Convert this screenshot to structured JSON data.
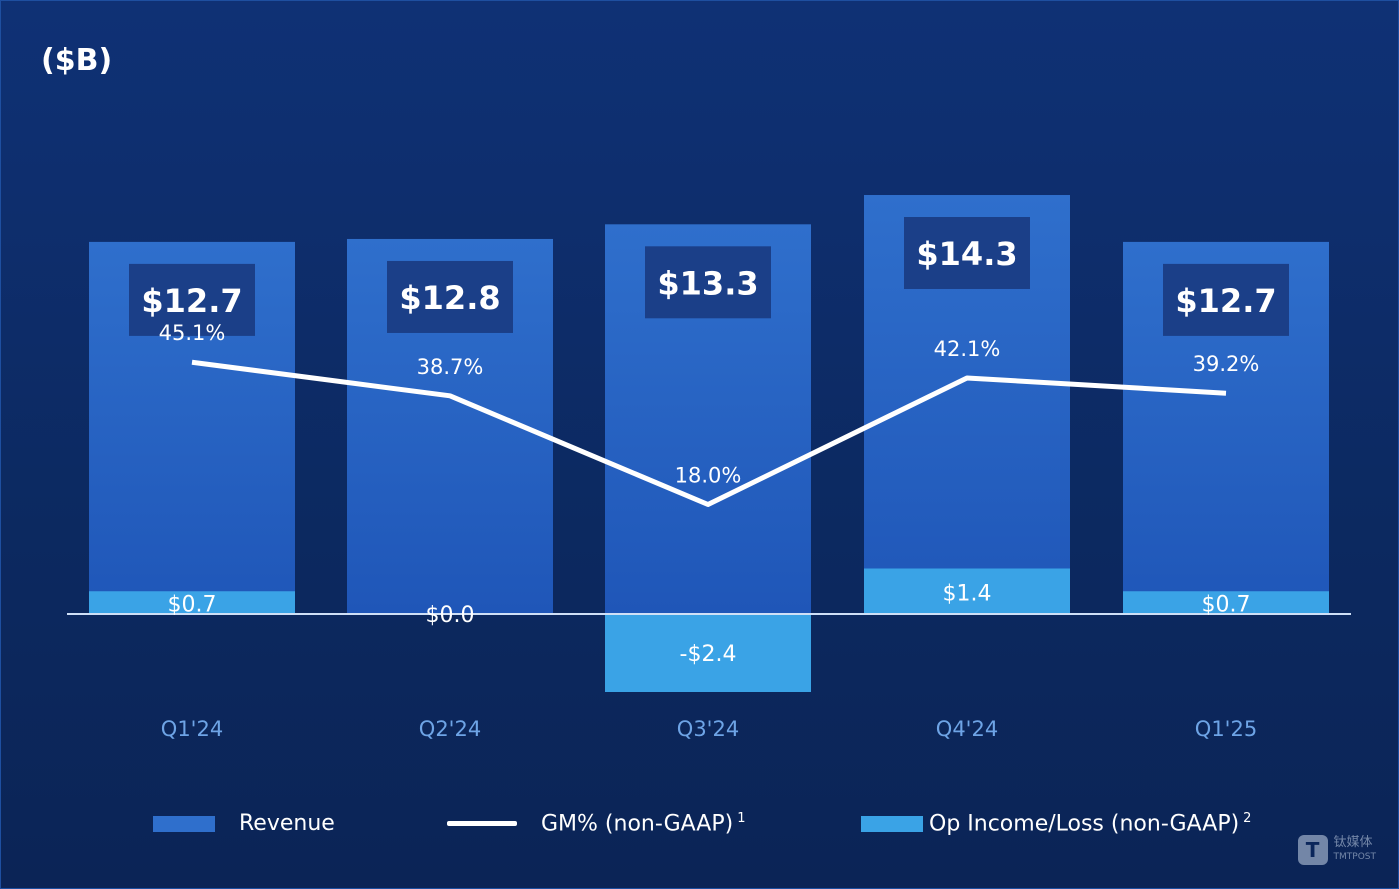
{
  "unit_label": "($B)",
  "colors": {
    "revenue_top": "#2f6fcc",
    "revenue_bottom": "#1f56b8",
    "op_income": "#3aa3e6",
    "gm_line": "#ffffff",
    "value_box": "#1b3f88",
    "axis_labels": "#6ea4e6"
  },
  "legend": {
    "revenue": "Revenue",
    "gm": "GM% (non-GAAP)",
    "gm_sup": "1",
    "op": "Op Income/Loss (non-GAAP)",
    "op_sup": "2"
  },
  "watermark": {
    "mark": "T",
    "text": "钛媒体",
    "sub": "TMTPOST"
  },
  "chart_data": {
    "type": "bar",
    "categories": [
      "Q1'24",
      "Q2'24",
      "Q3'24",
      "Q4'24",
      "Q1'25"
    ],
    "series": [
      {
        "name": "Revenue",
        "values": [
          12.7,
          12.8,
          13.3,
          14.3,
          12.7
        ],
        "labels": [
          "$12.7",
          "$12.8",
          "$13.3",
          "$14.3",
          "$12.7"
        ]
      },
      {
        "name": "GM% (non-GAAP)",
        "type": "line",
        "values": [
          45.1,
          38.7,
          18.0,
          42.1,
          39.2
        ],
        "labels": [
          "45.1%",
          "38.7%",
          "18.0%",
          "42.1%",
          "39.2%"
        ]
      },
      {
        "name": "Op Income/Loss (non-GAAP)",
        "values": [
          0.7,
          0.0,
          -2.4,
          1.4,
          0.7
        ],
        "labels": [
          "$0.7",
          "$0.0",
          "-$2.4",
          "$1.4",
          "$0.7"
        ]
      }
    ],
    "ylabel": "($B)"
  }
}
